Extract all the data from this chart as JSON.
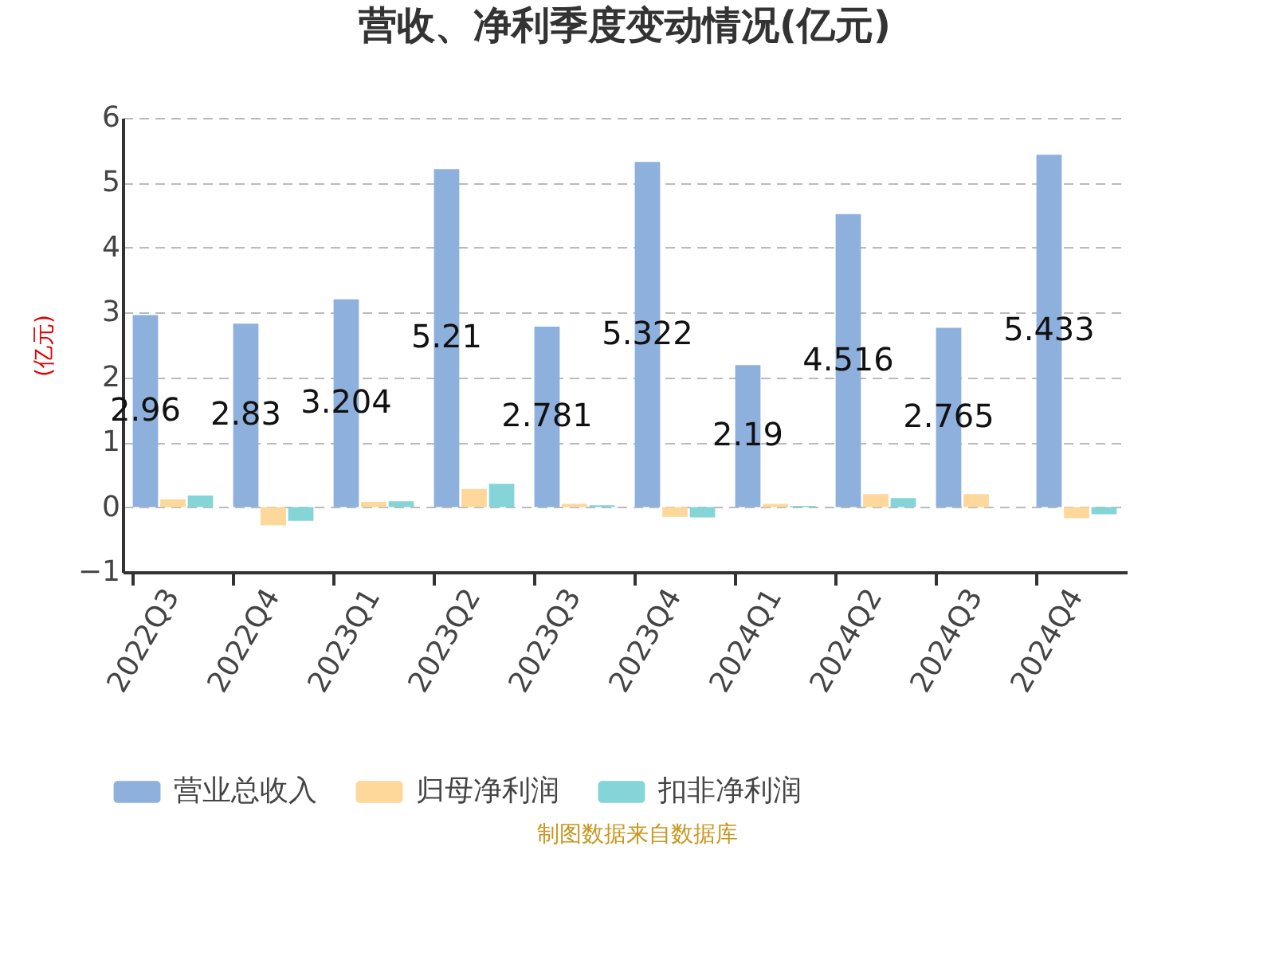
{
  "chart_data": {
    "type": "bar",
    "title": "营收、净利季度变动情况(亿元)",
    "ylabel": "(亿元)",
    "categories": [
      "2022Q3",
      "2022Q4",
      "2023Q1",
      "2023Q2",
      "2023Q3",
      "2023Q4",
      "2024Q1",
      "2024Q2",
      "2024Q3",
      "2024Q4"
    ],
    "series": [
      {
        "name": "营业总收入",
        "color": "#8eb0dc",
        "values": [
          2.96,
          2.83,
          3.204,
          5.21,
          2.781,
          5.322,
          2.19,
          4.516,
          2.765,
          5.433
        ],
        "value_labels": [
          "2.96",
          "2.83",
          "3.204",
          "5.21",
          "2.781",
          "5.322",
          "2.19",
          "4.516",
          "2.765",
          "5.433"
        ]
      },
      {
        "name": "归母净利润",
        "color": "#fdd89a",
        "values": [
          0.12,
          -0.28,
          0.08,
          0.28,
          0.05,
          -0.15,
          0.05,
          0.2,
          0.2,
          -0.17
        ]
      },
      {
        "name": "扣非净利润",
        "color": "#84d4d8",
        "values": [
          0.18,
          -0.21,
          0.09,
          0.36,
          0.03,
          -0.16,
          0.02,
          0.14,
          null,
          -0.11
        ]
      }
    ],
    "ylim": [
      -1,
      6
    ],
    "yticks": [
      -1,
      0,
      1,
      2,
      3,
      4,
      5,
      6
    ],
    "grid": "y",
    "legend": "bottom",
    "annotations": [
      "制图数据来自数据库"
    ]
  }
}
